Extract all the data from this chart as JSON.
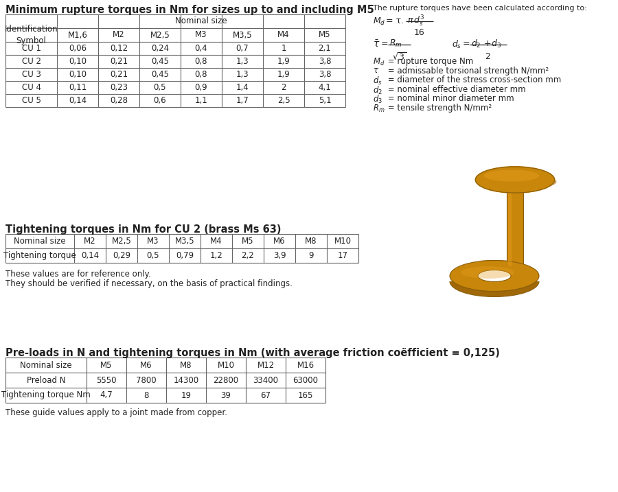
{
  "title1": "Minimum rupture torques in Nm for sizes up to and including M5",
  "table1_col_header": [
    "M1,6",
    "M2",
    "M2,5",
    "M3",
    "M3,5",
    "M4",
    "M5"
  ],
  "table1_data": [
    [
      "CU 1",
      "0,06",
      "0,12",
      "0,24",
      "0,4",
      "0,7",
      "1",
      "2,1"
    ],
    [
      "CU 2",
      "0,10",
      "0,21",
      "0,45",
      "0,8",
      "1,3",
      "1,9",
      "3,8"
    ],
    [
      "CU 3",
      "0,10",
      "0,21",
      "0,45",
      "0,8",
      "1,3",
      "1,9",
      "3,8"
    ],
    [
      "CU 4",
      "0,11",
      "0,23",
      "0,5",
      "0,9",
      "1,4",
      "2",
      "4,1"
    ],
    [
      "CU 5",
      "0,14",
      "0,28",
      "0,6",
      "1,1",
      "1,7",
      "2,5",
      "5,1"
    ]
  ],
  "formula_text": "The rupture torques have been calculated according to:",
  "title2": "Tightening torques in Nm for CU 2 (brass Ms 63)",
  "table2_col_header": [
    "M2",
    "M2,5",
    "M3",
    "M3,5",
    "M4",
    "M5",
    "M6",
    "M8",
    "M10"
  ],
  "table2_data": [
    "0,14",
    "0,29",
    "0,5",
    "0,79",
    "1,2",
    "2,2",
    "3,9",
    "9",
    "17"
  ],
  "note1_line1": "These values are for reference only.",
  "note1_line2": "They should be verified if necessary, on the basis of practical findings.",
  "title3": "Pre-loads in N and tightening torques in Nm (with average friction coëfficient = 0,125)",
  "table3_col_header": [
    "M5",
    "M6",
    "M8",
    "M10",
    "M12",
    "M16"
  ],
  "table3_preload": [
    "5550",
    "7800",
    "14300",
    "22800",
    "33400",
    "63000"
  ],
  "table3_torque": [
    "4,7",
    "8",
    "19",
    "39",
    "67",
    "165"
  ],
  "note2": "These guide values apply to a joint made from copper.",
  "bg_color": "#ffffff",
  "text_color": "#222222",
  "border_color": "#666666"
}
